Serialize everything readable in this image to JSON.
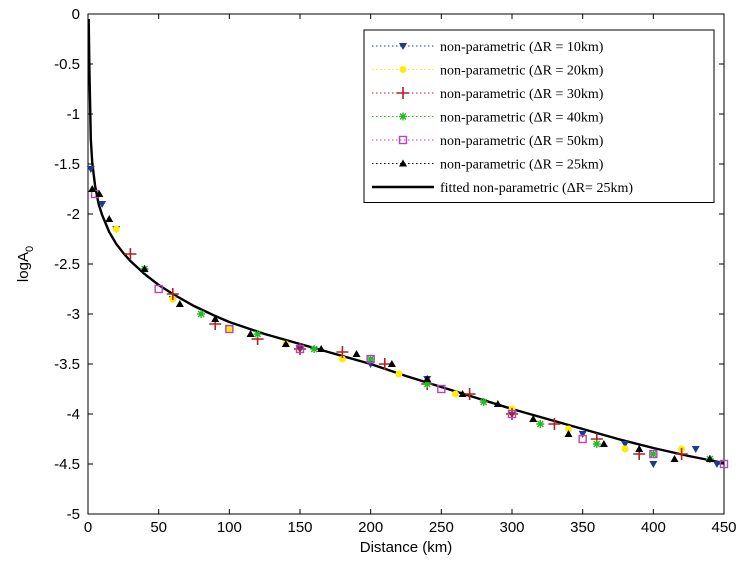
{
  "chart_data": {
    "type": "scatter",
    "title": "",
    "xlabel": "Distance (km)",
    "ylabel": "logA",
    "ylabel_subscript": "0",
    "xlim": [
      0,
      450
    ],
    "ylim": [
      -5,
      0
    ],
    "xticks": [
      "0",
      "50",
      "100",
      "150",
      "200",
      "250",
      "300",
      "350",
      "400",
      "450"
    ],
    "yticks": [
      "0",
      "-0.5",
      "-1",
      "-1.5",
      "-2",
      "-2.5",
      "-3",
      "-3.5",
      "-4",
      "-4.5",
      "-5"
    ],
    "grid": false,
    "legend_position": "top-right",
    "series": [
      {
        "name": "non-parametric (ΔR = 10km)",
        "marker": "triangle-down",
        "color": "#1f3a8a",
        "x": [
          2,
          10,
          20,
          60,
          100,
          150,
          200,
          240,
          300,
          350,
          380,
          400,
          430,
          445
        ],
        "y": [
          -1.55,
          -1.9,
          -2.15,
          -2.85,
          -3.15,
          -3.35,
          -3.5,
          -3.65,
          -4.0,
          -4.2,
          -4.3,
          -4.5,
          -4.35,
          -4.5
        ]
      },
      {
        "name": "non-parametric (ΔR = 20km)",
        "marker": "circle",
        "color": "#ffee00",
        "x": [
          20,
          60,
          100,
          140,
          180,
          220,
          260,
          300,
          340,
          380,
          420
        ],
        "y": [
          -2.15,
          -2.85,
          -3.15,
          -3.3,
          -3.45,
          -3.6,
          -3.8,
          -3.95,
          -4.15,
          -4.35,
          -4.35
        ]
      },
      {
        "name": "non-parametric (ΔR = 30km)",
        "marker": "plus",
        "color": "#b22222",
        "x": [
          30,
          60,
          90,
          120,
          150,
          180,
          210,
          240,
          270,
          300,
          330,
          360,
          390,
          420
        ],
        "y": [
          -2.4,
          -2.8,
          -3.1,
          -3.25,
          -3.35,
          -3.38,
          -3.5,
          -3.7,
          -3.8,
          -4.0,
          -4.1,
          -4.25,
          -4.4,
          -4.4
        ]
      },
      {
        "name": "non-parametric (ΔR = 40km)",
        "marker": "asterisk",
        "color": "#22bb22",
        "x": [
          40,
          80,
          120,
          160,
          200,
          240,
          280,
          320,
          360,
          400,
          440
        ],
        "y": [
          -2.55,
          -3.0,
          -3.2,
          -3.35,
          -3.45,
          -3.7,
          -3.88,
          -4.1,
          -4.3,
          -4.4,
          -4.45
        ]
      },
      {
        "name": "non-parametric (ΔR = 50km)",
        "marker": "square",
        "color": "#bb44bb",
        "x": [
          5,
          50,
          100,
          150,
          200,
          250,
          300,
          350,
          400,
          450
        ],
        "y": [
          -1.8,
          -2.75,
          -3.15,
          -3.35,
          -3.45,
          -3.75,
          -4.0,
          -4.25,
          -4.4,
          -4.5
        ]
      },
      {
        "name": "non-parametric (ΔR = 25km)",
        "marker": "triangle-up",
        "color": "#000000",
        "x": [
          3,
          8,
          15,
          40,
          65,
          90,
          115,
          140,
          165,
          190,
          215,
          240,
          265,
          290,
          315,
          340,
          365,
          390,
          415,
          440
        ],
        "y": [
          -1.75,
          -1.8,
          -2.05,
          -2.55,
          -2.9,
          -3.05,
          -3.2,
          -3.3,
          -3.35,
          -3.4,
          -3.5,
          -3.65,
          -3.8,
          -3.9,
          -4.05,
          -4.2,
          -4.3,
          -4.35,
          -4.45,
          -4.45
        ]
      },
      {
        "name": "fitted non-parametric (ΔR= 25km)",
        "marker": "none",
        "line": "solid",
        "color": "#000000",
        "x": [
          0.5,
          1,
          2,
          3,
          5,
          7.5,
          10,
          15,
          20,
          25,
          30,
          40,
          50,
          60,
          75,
          90,
          100,
          125,
          150,
          175,
          200,
          225,
          250,
          275,
          300,
          325,
          350,
          375,
          400,
          425,
          450
        ],
        "y": [
          -0.05,
          -0.55,
          -1.25,
          -1.48,
          -1.72,
          -1.9,
          -2.01,
          -2.18,
          -2.3,
          -2.39,
          -2.47,
          -2.6,
          -2.71,
          -2.8,
          -2.92,
          -3.02,
          -3.08,
          -3.2,
          -3.3,
          -3.4,
          -3.5,
          -3.62,
          -3.73,
          -3.84,
          -3.95,
          -4.05,
          -4.15,
          -4.25,
          -4.34,
          -4.42,
          -4.49
        ]
      }
    ]
  }
}
